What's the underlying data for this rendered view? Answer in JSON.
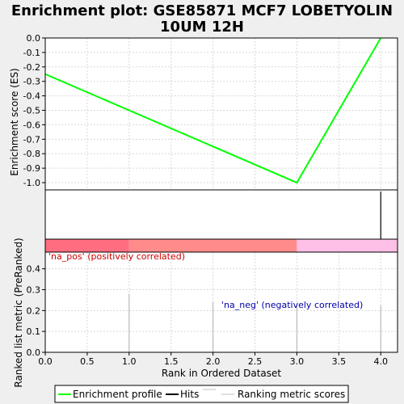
{
  "title_line1": "Enrichment plot: GSE85871 MCF7 LOBETYOLIN",
  "title_line2": "10UM 12H",
  "chart_data": [
    {
      "type": "line",
      "ylabel": "Enrichment score (ES)",
      "ylim": [
        -1.05,
        0.0
      ],
      "yticks": [
        0.0,
        -0.1,
        -0.2,
        -0.3,
        -0.4,
        -0.5,
        -0.6,
        -0.7,
        -0.8,
        -0.9,
        -1.0
      ],
      "ytick_labels": [
        "0.0",
        "-0.1",
        "-0.2",
        "-0.3",
        "-0.4",
        "-0.5",
        "-0.6",
        "-0.7",
        "-0.8",
        "-0.9",
        "-1.0"
      ],
      "grid": true,
      "series": [
        {
          "name": "Enrichment profile",
          "color": "#00ff00",
          "x": [
            0,
            3,
            4
          ],
          "y": [
            -0.25,
            -1.0,
            0.0
          ]
        }
      ]
    },
    {
      "type": "hits",
      "hits_x": [
        4
      ],
      "color": "#000000"
    },
    {
      "type": "heatmap",
      "segments": [
        {
          "x0": 0,
          "x1": 1,
          "color": "#ff6e80"
        },
        {
          "x0": 1,
          "x1": 3,
          "color": "#ff8b8b"
        },
        {
          "x0": 3,
          "x1": 4.2,
          "color": "#ffc0e8"
        }
      ]
    },
    {
      "type": "bar",
      "xlabel": "Rank in Ordered Dataset",
      "ylabel": "Ranked list metric (PreRanked)",
      "xlim": [
        0,
        4.2
      ],
      "ylim": [
        0,
        0.48
      ],
      "xticks": [
        0.0,
        0.5,
        1.0,
        1.5,
        2.0,
        2.5,
        3.0,
        3.5,
        4.0
      ],
      "xtick_labels": [
        "0.0",
        "0.5",
        "1.0",
        "1.5",
        "2.0",
        "2.5",
        "3.0",
        "3.5",
        "4.0"
      ],
      "yticks": [
        0.0,
        0.1,
        0.2,
        0.3,
        0.4
      ],
      "ytick_labels": [
        "0.0",
        "0.1",
        "0.2",
        "0.3",
        "0.4"
      ],
      "grid": true,
      "x": [
        1,
        2,
        3,
        4
      ],
      "values": [
        0.28,
        0.24,
        0.225,
        0.225
      ],
      "annotations": [
        {
          "text": "'na_pos' (positively correlated)",
          "color": "#cc0000"
        },
        {
          "text": "'na_neg' (negatively correlated)",
          "color": "#0000aa"
        }
      ]
    }
  ],
  "legend": {
    "items": [
      {
        "label": "Enrichment profile",
        "color": "#00ff00"
      },
      {
        "label": "Hits",
        "color": "#000000"
      },
      {
        "label": "Ranking metric scores",
        "color": "#c0c0c0"
      }
    ]
  }
}
